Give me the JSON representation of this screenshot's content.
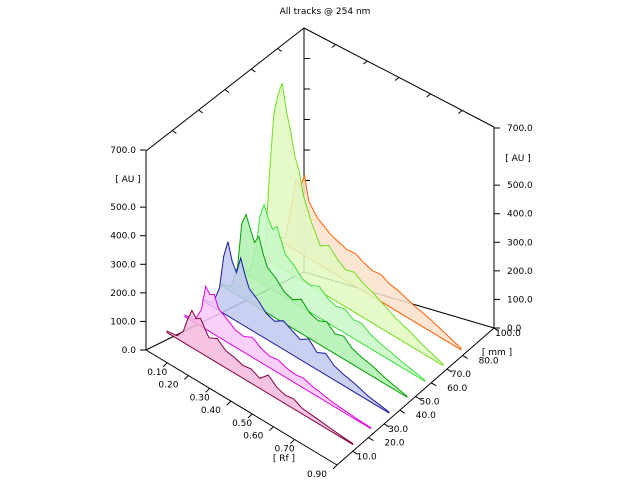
{
  "chart_data": {
    "type": "area",
    "title": "All tracks @ 254 nm",
    "left_axis": {
      "label": "[ AU ]",
      "ticks": [
        "0.0",
        "100.0",
        "200.0",
        "300.0",
        "400.0",
        "500.0",
        "700.0"
      ],
      "range": [
        0,
        700
      ]
    },
    "right_axis": {
      "label": "[ AU ]",
      "ticks": [
        "0.0",
        "100.0",
        "200.0",
        "300.0",
        "400.0",
        "500.0",
        "700.0"
      ],
      "range": [
        0,
        700
      ]
    },
    "rf_axis": {
      "label": "[ Rf ]",
      "ticks": [
        "0.10",
        "0.20",
        "0.30",
        "0.40",
        "0.50",
        "0.60",
        "0.70",
        "0.90"
      ],
      "range": [
        0.0,
        0.9
      ]
    },
    "mm_axis": {
      "label": "[ mm ]",
      "ticks": [
        "10.0",
        "20.0",
        "30.0",
        "40.0",
        "50.0",
        "60.0",
        "70.0",
        "80.0",
        "100.0"
      ],
      "range": [
        0,
        100
      ]
    },
    "series": [
      {
        "track": 1,
        "color": "#800040",
        "fill": "#f5b8de",
        "rf": [
          0.0,
          0.05,
          0.08,
          0.1,
          0.12,
          0.14,
          0.16,
          0.2,
          0.24,
          0.28,
          0.32,
          0.36,
          0.4,
          0.44,
          0.48,
          0.52,
          0.56,
          0.6,
          0.64,
          0.7,
          0.76,
          0.82,
          0.88
        ],
        "au": [
          5,
          10,
          40,
          90,
          130,
          110,
          120,
          70,
          85,
          60,
          55,
          45,
          50,
          35,
          65,
          40,
          30,
          35,
          20,
          15,
          10,
          6,
          3
        ]
      },
      {
        "track": 2,
        "color": "#e000e0",
        "fill": "#f8c8f8",
        "rf": [
          0.0,
          0.05,
          0.08,
          0.1,
          0.12,
          0.14,
          0.16,
          0.2,
          0.24,
          0.28,
          0.32,
          0.36,
          0.4,
          0.44,
          0.48,
          0.52,
          0.56,
          0.6,
          0.64,
          0.7,
          0.76,
          0.82,
          0.88
        ],
        "au": [
          5,
          10,
          60,
          150,
          130,
          140,
          100,
          80,
          60,
          55,
          70,
          50,
          40,
          45,
          35,
          30,
          35,
          25,
          20,
          12,
          8,
          5,
          3
        ]
      },
      {
        "track": 3,
        "color": "#1a1aa0",
        "fill": "#c0c8f0",
        "rf": [
          0.0,
          0.05,
          0.08,
          0.1,
          0.12,
          0.14,
          0.16,
          0.18,
          0.2,
          0.22,
          0.26,
          0.3,
          0.34,
          0.38,
          0.42,
          0.46,
          0.5,
          0.54,
          0.58,
          0.62,
          0.66,
          0.72,
          0.78,
          0.84,
          0.88
        ],
        "au": [
          5,
          15,
          80,
          200,
          260,
          200,
          170,
          230,
          180,
          140,
          120,
          90,
          80,
          100,
          85,
          70,
          90,
          60,
          75,
          50,
          40,
          30,
          15,
          8,
          3
        ]
      },
      {
        "track": 4,
        "color": "#00a000",
        "fill": "#b0f0b0",
        "rf": [
          0.0,
          0.05,
          0.08,
          0.1,
          0.12,
          0.14,
          0.16,
          0.18,
          0.2,
          0.22,
          0.26,
          0.3,
          0.34,
          0.38,
          0.42,
          0.46,
          0.5,
          0.54,
          0.58,
          0.62,
          0.66,
          0.72,
          0.78,
          0.84,
          0.88
        ],
        "au": [
          5,
          15,
          100,
          260,
          300,
          260,
          220,
          250,
          200,
          160,
          140,
          110,
          100,
          120,
          90,
          80,
          95,
          70,
          80,
          55,
          45,
          35,
          20,
          10,
          3
        ]
      },
      {
        "track": 5,
        "color": "#40e040",
        "fill": "#c8f8c8",
        "rf": [
          0.0,
          0.05,
          0.08,
          0.1,
          0.12,
          0.14,
          0.16,
          0.18,
          0.2,
          0.22,
          0.26,
          0.3,
          0.34,
          0.38,
          0.42,
          0.46,
          0.5,
          0.54,
          0.58,
          0.62,
          0.66,
          0.72,
          0.78,
          0.84,
          0.88
        ],
        "au": [
          5,
          15,
          100,
          230,
          280,
          240,
          210,
          230,
          190,
          150,
          130,
          100,
          95,
          110,
          85,
          75,
          85,
          65,
          70,
          50,
          40,
          30,
          18,
          10,
          3
        ]
      },
      {
        "track": 6,
        "color": "#70e020",
        "fill": "#e0f8c0",
        "rf": [
          0.0,
          0.04,
          0.06,
          0.08,
          0.1,
          0.12,
          0.14,
          0.16,
          0.18,
          0.2,
          0.22,
          0.26,
          0.3,
          0.34,
          0.38,
          0.42,
          0.46,
          0.5,
          0.54,
          0.58,
          0.62,
          0.66,
          0.72,
          0.78,
          0.84,
          0.88
        ],
        "au": [
          5,
          40,
          300,
          520,
          600,
          650,
          560,
          500,
          420,
          380,
          300,
          220,
          160,
          180,
          150,
          130,
          140,
          120,
          110,
          95,
          80,
          65,
          50,
          30,
          15,
          5
        ]
      },
      {
        "track": 7,
        "color": "#ff6000",
        "fill": "#fde0cc",
        "rf": [
          0.0,
          0.05,
          0.08,
          0.1,
          0.12,
          0.14,
          0.16,
          0.18,
          0.2,
          0.22,
          0.26,
          0.3,
          0.34,
          0.38,
          0.42,
          0.46,
          0.5,
          0.54,
          0.58,
          0.62,
          0.66,
          0.72,
          0.78,
          0.84,
          0.88
        ],
        "au": [
          5,
          20,
          150,
          250,
          230,
          280,
          200,
          180,
          160,
          150,
          130,
          120,
          110,
          115,
          100,
          90,
          95,
          80,
          75,
          65,
          55,
          45,
          30,
          15,
          5
        ]
      }
    ]
  }
}
